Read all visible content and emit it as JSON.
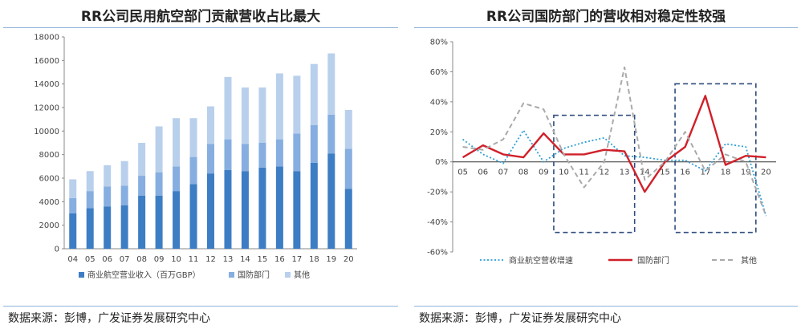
{
  "left": {
    "title": "RR公司民用航空部门贡献营收占比最大",
    "source": "数据来源：彭博，广发证券发展研究中心"
  },
  "right": {
    "title": "RR公司国防部门的营收相对稳定性较强",
    "source": "数据来源：彭博，广发证券发展研究中心"
  },
  "chart_data": [
    {
      "type": "bar",
      "stacked": true,
      "title": "RR公司民用航空部门贡献营收占比最大",
      "categories": [
        "04",
        "05",
        "06",
        "07",
        "08",
        "09",
        "10",
        "11",
        "12",
        "13",
        "14",
        "15",
        "16",
        "17",
        "18",
        "19",
        "20"
      ],
      "series": [
        {
          "name": "商业航空营业收入（百万GBP）",
          "color": "#3d7dc4",
          "values": [
            3000,
            3450,
            3600,
            3700,
            4500,
            4500,
            4900,
            5500,
            6400,
            6700,
            6600,
            6900,
            7000,
            6600,
            7300,
            8100,
            5100
          ]
        },
        {
          "name": "国防部门",
          "color": "#86aee0",
          "values": [
            1300,
            1450,
            1700,
            1650,
            1700,
            2000,
            2100,
            2300,
            2500,
            2600,
            2300,
            2100,
            2300,
            3200,
            3200,
            3300,
            3400
          ]
        },
        {
          "name": "其他",
          "color": "#b9d0ec",
          "values": [
            1600,
            1700,
            1800,
            2100,
            2800,
            3900,
            4100,
            3300,
            3200,
            5300,
            4800,
            4700,
            5600,
            4900,
            5200,
            5200,
            3300
          ]
        }
      ],
      "ylim": [
        0,
        18000
      ],
      "yticks": [
        0,
        2000,
        4000,
        6000,
        8000,
        10000,
        12000,
        14000,
        16000,
        18000
      ],
      "legend": "bottom",
      "grid": false
    },
    {
      "type": "line",
      "title": "RR公司国防部门的营收相对稳定性较强",
      "categories": [
        "05",
        "06",
        "07",
        "08",
        "09",
        "10",
        "11",
        "12",
        "13",
        "14",
        "15",
        "16",
        "17",
        "18",
        "19",
        "20"
      ],
      "series": [
        {
          "name": "商业航空营收增速",
          "color": "#2e9fd6",
          "style": "dotted",
          "values": [
            15,
            5,
            -1,
            21,
            0,
            9,
            13,
            16,
            4,
            3,
            1,
            1,
            -6,
            12,
            10,
            -36
          ]
        },
        {
          "name": "国防部门",
          "color": "#d0202a",
          "style": "solid",
          "values": [
            3,
            11,
            5,
            3,
            19,
            5,
            5,
            8,
            7,
            -20,
            0,
            10,
            44,
            -2,
            4,
            3
          ]
        },
        {
          "name": "其他",
          "color": "#aaaaaa",
          "style": "dashed",
          "values": [
            10,
            8,
            15,
            39,
            35,
            5,
            -17,
            0,
            63,
            -12,
            0,
            20,
            -6,
            5,
            0,
            -36
          ]
        }
      ],
      "ylim": [
        -60,
        80
      ],
      "yticks": [
        -60,
        -40,
        -20,
        0,
        20,
        40,
        60,
        80
      ],
      "ytick_labels": [
        "-60%",
        "-40%",
        "-20%",
        "0%",
        "20%",
        "40%",
        "60%",
        "80%"
      ],
      "annotations": [
        {
          "shape": "dashed-box",
          "x_range": [
            "10",
            "13"
          ],
          "y_range": [
            -47,
            31
          ]
        },
        {
          "shape": "dashed-box",
          "x_range": [
            "16",
            "19"
          ],
          "y_range": [
            -47,
            52
          ]
        }
      ],
      "legend": "bottom",
      "grid": false
    }
  ]
}
